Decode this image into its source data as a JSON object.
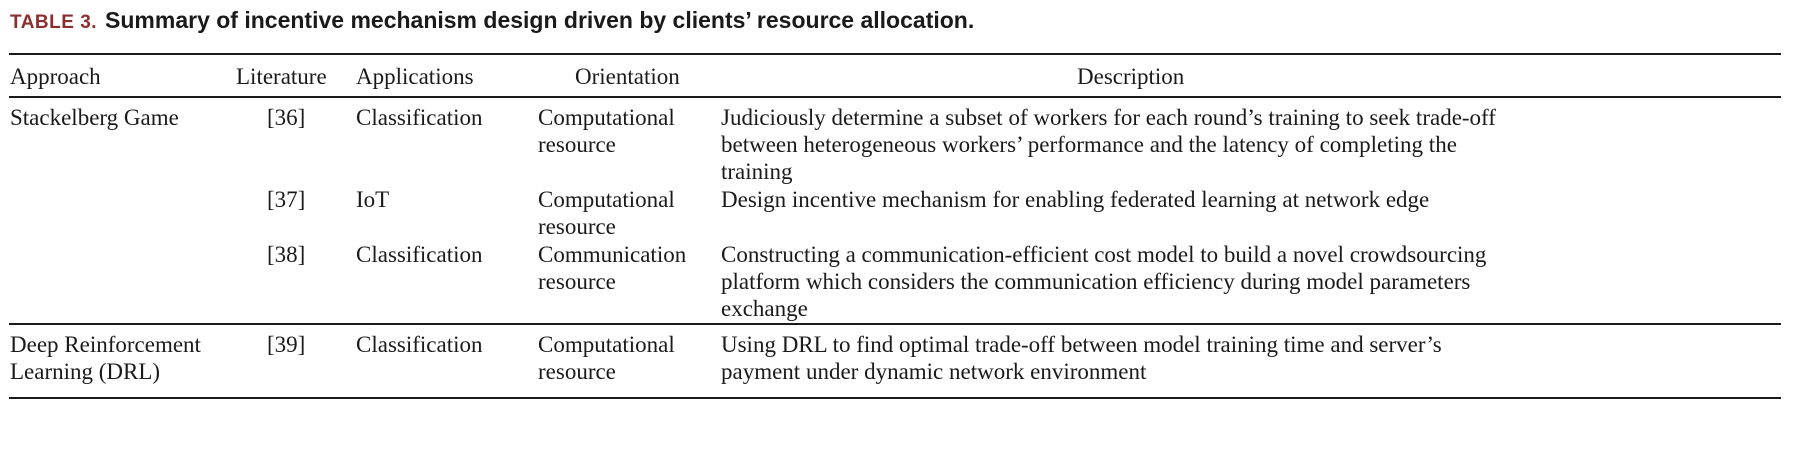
{
  "caption": {
    "label": "TABLE 3.",
    "title": "Summary of incentive mechanism design driven by clients’ resource allocation."
  },
  "columns": [
    "Approach",
    "Literature",
    "Applications",
    "Orientation",
    "Description"
  ],
  "rows": [
    {
      "approach": "Stackelberg Game",
      "literature": "[36]",
      "application": "Classification",
      "orientation": [
        "Computational",
        "resource"
      ],
      "description": [
        "Judiciously determine a subset of workers for each round’s training to seek trade-off",
        "between heterogeneous workers’ performance and the latency of completing the",
        "training"
      ]
    },
    {
      "approach": "",
      "literature": "[37]",
      "application": "IoT",
      "orientation": [
        "Computational",
        "resource"
      ],
      "description": [
        "Design incentive mechanism for enabling federated learning at network edge"
      ]
    },
    {
      "approach": "",
      "literature": "[38]",
      "application": "Classification",
      "orientation": [
        "Communication",
        "resource"
      ],
      "description": [
        "Constructing a communication-efficient cost model to build a novel crowdsourcing",
        "platform which considers the communication efficiency during model parameters",
        "exchange"
      ]
    },
    {
      "approach": [
        "Deep Reinforcement",
        "Learning (DRL)"
      ],
      "literature": "[39]",
      "application": "Classification",
      "orientation": [
        "Computational",
        "resource"
      ],
      "description": [
        "Using DRL to find optimal trade-off between model training time and server’s",
        "payment under dynamic network environment"
      ]
    }
  ]
}
